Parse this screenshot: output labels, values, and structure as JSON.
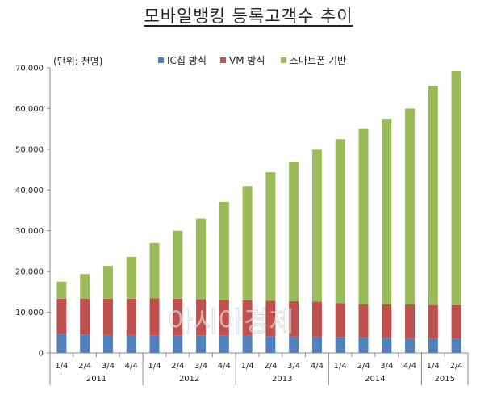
{
  "title": "모바일뱅킹 등록고객수 추이",
  "chart_data": {
    "type": "bar",
    "stacked": true,
    "unit_label": "(단위: 천명)",
    "categories": [
      "1/4",
      "2/4",
      "3/4",
      "4/4",
      "1/4",
      "2/4",
      "3/4",
      "4/4",
      "1/4",
      "2/4",
      "3/4",
      "4/4",
      "1/4",
      "2/4",
      "3/4",
      "4/4",
      "1/4",
      "2/4"
    ],
    "years": [
      {
        "label": "2011",
        "start": 0,
        "end": 3
      },
      {
        "label": "2012",
        "start": 4,
        "end": 7
      },
      {
        "label": "2013",
        "start": 8,
        "end": 11
      },
      {
        "label": "2014",
        "start": 12,
        "end": 15
      },
      {
        "label": "2015",
        "start": 16,
        "end": 17
      }
    ],
    "series": [
      {
        "name": "IC칩 방식",
        "color": "#4f81bd",
        "values": [
          4600,
          4500,
          4400,
          4400,
          4300,
          4300,
          4300,
          4200,
          4200,
          4100,
          4000,
          4000,
          3900,
          3800,
          3700,
          3600,
          3600,
          3500
        ]
      },
      {
        "name": "VM 방식",
        "color": "#c0504d",
        "values": [
          8700,
          8800,
          8900,
          8900,
          9100,
          9000,
          8900,
          8800,
          8700,
          8700,
          8700,
          8600,
          8300,
          8100,
          8200,
          8300,
          8100,
          8200
        ]
      },
      {
        "name": "스마트폰 기반",
        "color": "#9bbb59",
        "values": [
          4200,
          6100,
          8100,
          10300,
          13600,
          16700,
          19800,
          24100,
          28100,
          31600,
          34300,
          37300,
          40300,
          43100,
          45600,
          48100,
          53900,
          57500
        ]
      }
    ],
    "yticks": [
      0,
      10000,
      20000,
      30000,
      40000,
      50000,
      60000,
      70000
    ],
    "ytick_labels": [
      "0",
      "10,000",
      "20,000",
      "30,000",
      "40,000",
      "50,000",
      "60,000",
      "70,000"
    ],
    "ylim": [
      0,
      70000
    ],
    "grid": false,
    "legend_position": "top"
  },
  "watermark": "아시아경제"
}
